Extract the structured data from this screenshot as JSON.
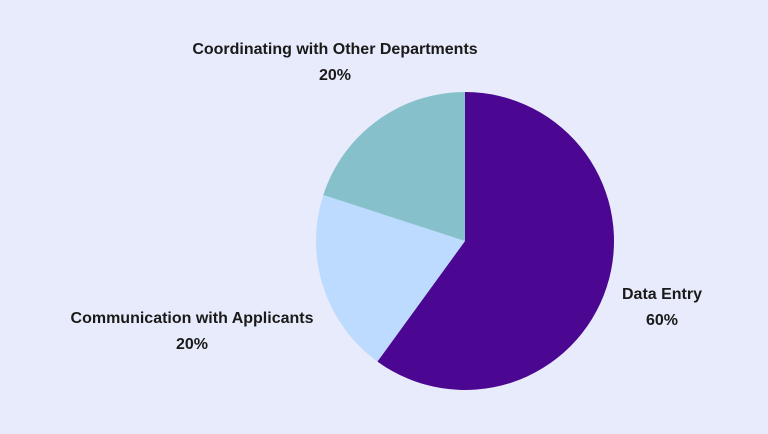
{
  "chart_data": {
    "type": "pie",
    "title": "",
    "slices": [
      {
        "label": "Data Entry",
        "value": 60,
        "value_label": "60%",
        "color": "#4b0791"
      },
      {
        "label": "Communication with Applicants",
        "value": 20,
        "value_label": "20%",
        "color": "#bcdbff"
      },
      {
        "label": "Coordinating with Other Departments",
        "value": 20,
        "value_label": "20%",
        "color": "#86c1cb"
      }
    ],
    "start_angle": "12 o'clock",
    "direction": "clockwise",
    "legend": "none",
    "labels": "outside slices"
  },
  "colors": {
    "background": "#e8ebfb",
    "label_text": "#1a1a1a"
  }
}
